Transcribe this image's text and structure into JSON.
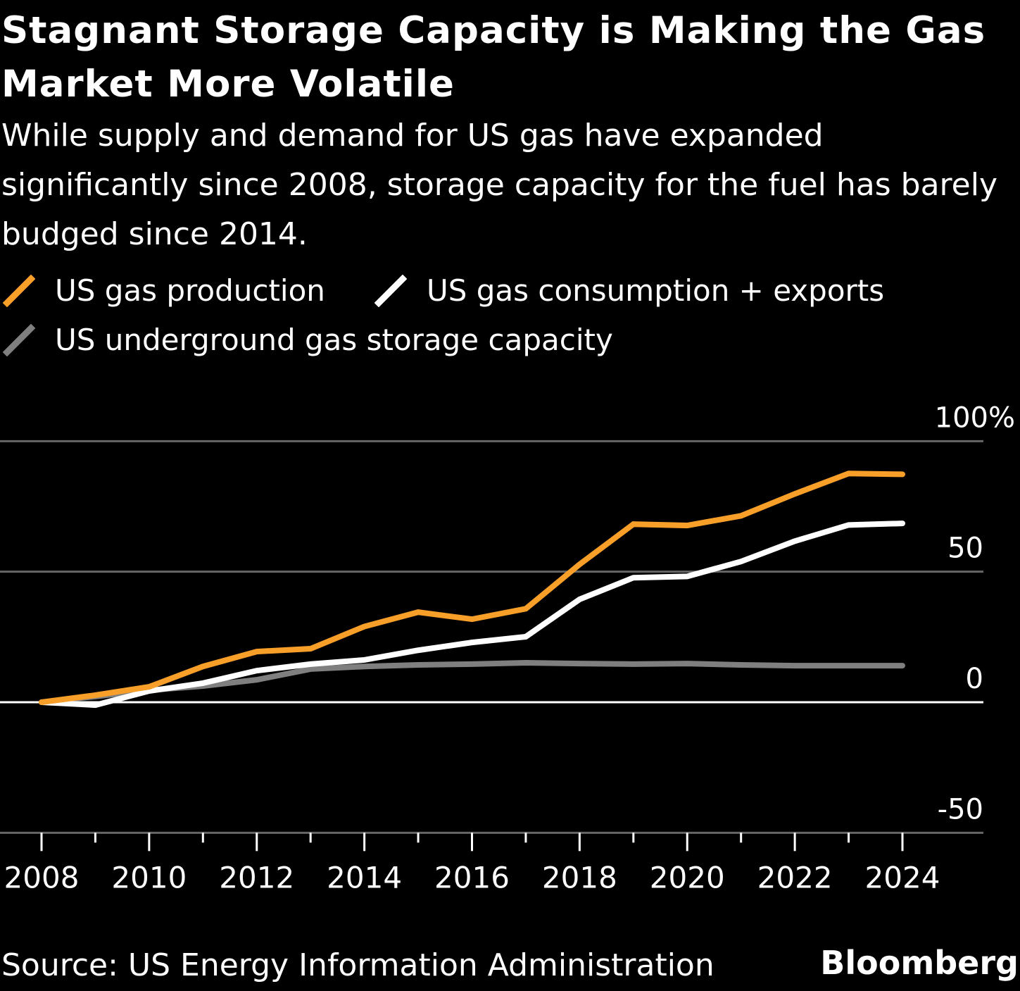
{
  "title": "Stagnant Storage Capacity is Making the Gas Market More Volatile",
  "subtitle": "While supply and demand for US gas have expanded significantly since 2008, storage capacity for the fuel has barely budged since 2014.",
  "source": "Source: US Energy Information Administration",
  "logo": "Bloomberg",
  "chart_data": {
    "type": "line",
    "title": "Stagnant Storage Capacity is Making the Gas Market More Volatile",
    "xlabel": "",
    "ylabel": "",
    "x": [
      2008,
      2009,
      2010,
      2011,
      2012,
      2013,
      2014,
      2015,
      2016,
      2017,
      2018,
      2019,
      2020,
      2021,
      2022,
      2023,
      2024
    ],
    "xticks": [
      "2008",
      "2010",
      "2012",
      "2014",
      "2016",
      "2018",
      "2020",
      "2022",
      "2024"
    ],
    "yticks": [
      "100%",
      "50",
      "0",
      "-50"
    ],
    "ylim": [
      -50,
      100
    ],
    "grid": true,
    "legend_position": "top-left",
    "series": [
      {
        "name": "US gas production",
        "color": "#f89f2a",
        "values": [
          0,
          2.7,
          5.9,
          13.7,
          19.4,
          20.5,
          29,
          34.5,
          31.8,
          35.8,
          52.8,
          68.2,
          67.7,
          71.4,
          79.8,
          87.6,
          87.3
        ]
      },
      {
        "name": "US gas consumption + exports",
        "color": "#ffffff",
        "values": [
          0,
          -1.1,
          4.3,
          7.3,
          12.1,
          14.6,
          16.2,
          19.9,
          22.9,
          25.1,
          39.4,
          47.7,
          48.2,
          53.9,
          61.7,
          67.9,
          68.5
        ]
      },
      {
        "name": "US underground gas storage capacity",
        "color": "#7f7f7f",
        "values": [
          0,
          2.2,
          4.6,
          6.2,
          8.6,
          12.7,
          13.7,
          14.3,
          14.6,
          15.1,
          14.8,
          14.6,
          14.8,
          14.3,
          14,
          14,
          14
        ]
      }
    ]
  }
}
